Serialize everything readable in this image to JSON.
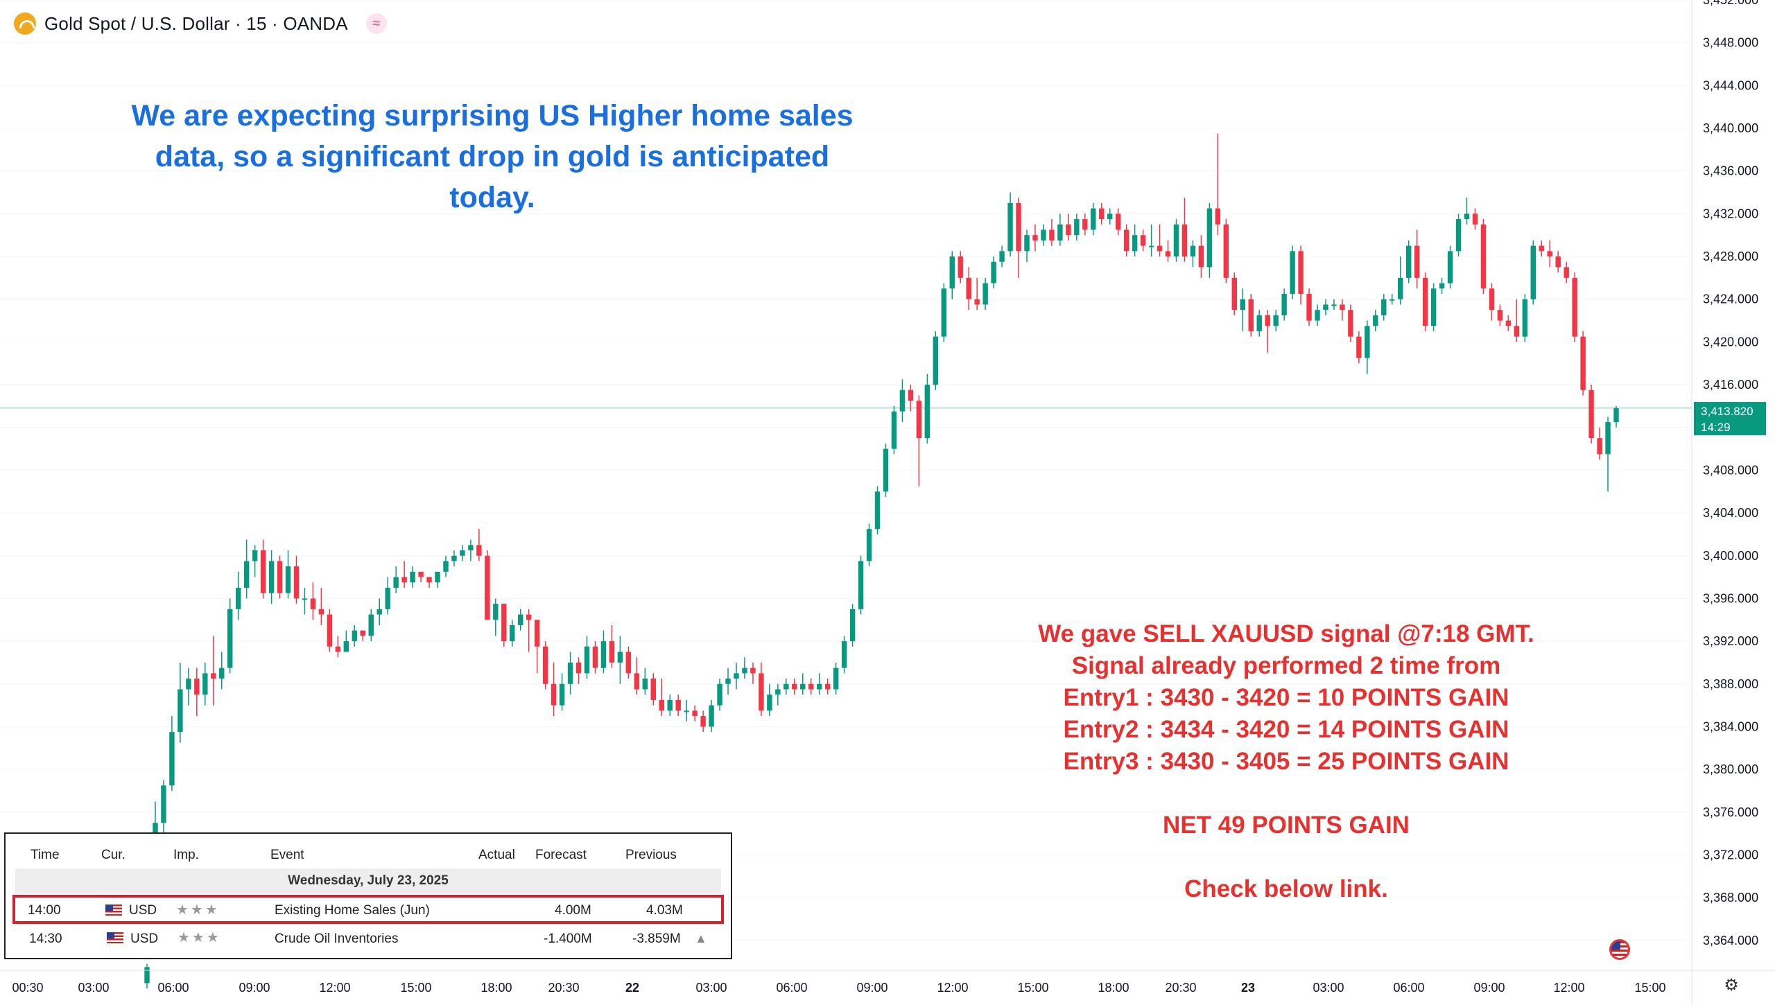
{
  "header": {
    "symbol_title": "Gold Spot / U.S. Dollar · 15 · OANDA",
    "wave_icon": "≈"
  },
  "annotation_blue": [
    "We are expecting surprising US Higher home sales",
    "data, so a significant drop in gold is anticipated",
    "today."
  ],
  "annotation_red": [
    "We gave SELL XAUUSD signal @7:18 GMT.",
    "Signal already performed 2 time from",
    "Entry1 : 3430 - 3420 = 10 POINTS GAIN",
    "Entry2 : 3434 - 3420 = 14 POINTS GAIN",
    "Entry3 : 3430 - 3405 = 25 POINTS GAIN",
    "",
    "NET 49 POINTS GAIN",
    "",
    "Check below link."
  ],
  "price_tag": {
    "price": "3,413.820",
    "countdown": "14:29"
  },
  "calendar": {
    "headers": {
      "time": "Time",
      "cur": "Cur.",
      "imp": "Imp.",
      "event": "Event",
      "actual": "Actual",
      "forecast": "Forecast",
      "previous": "Previous"
    },
    "date": "Wednesday, July 23, 2025",
    "rows": [
      {
        "time": "14:00",
        "cur": "USD",
        "stars": "★★★",
        "event": "Existing Home Sales (Jun)",
        "actual": "",
        "forecast": "4.00M",
        "previous": "4.03M",
        "highlighted": true
      },
      {
        "time": "14:30",
        "cur": "USD",
        "stars": "★★★",
        "event": "Crude Oil Inventories",
        "actual": "",
        "forecast": "-1.400M",
        "previous": "-3.859M",
        "highlighted": false
      }
    ]
  },
  "colors": {
    "up": "#089981",
    "down": "#f23645",
    "blue_text": "#1a6fe0",
    "red_text": "#e8302f"
  },
  "chart_data": {
    "type": "candlestick",
    "ylim": [
      3361.2,
      3452
    ],
    "y_ticks": [
      3452,
      3448,
      3444,
      3440,
      3436,
      3432,
      3428,
      3424,
      3420,
      3416,
      3412,
      3408,
      3404,
      3400,
      3396,
      3392,
      3388,
      3384,
      3380,
      3376,
      3372,
      3368,
      3364
    ],
    "y_tick_labels": [
      "3,452.000",
      "3,448.000",
      "3,444.000",
      "3,440.000",
      "3,436.000",
      "3,432.000",
      "3,428.000",
      "3,424.000",
      "3,420.000",
      "3,416.000",
      "",
      "3,408.000",
      "3,404.000",
      "3,400.000",
      "3,396.000",
      "3,392.000",
      "3,388.000",
      "3,384.000",
      "3,380.000",
      "3,376.000",
      "3,372.000",
      "3,368.000",
      "3,364.000"
    ],
    "x_tick_labels": [
      "00:30",
      "03:00",
      "06:00",
      "09:00",
      "12:00",
      "15:00",
      "18:00",
      "20:30",
      "22",
      "03:00",
      "06:00",
      "09:00",
      "12:00",
      "15:00",
      "18:00",
      "20:30",
      "23",
      "03:00",
      "06:00",
      "09:00",
      "12:00",
      "15:00"
    ],
    "current_price": 3413.82,
    "candles": [
      [
        3360.0,
        3361.5,
        3359.5,
        3361.8
      ],
      [
        3374.0,
        3375.0,
        3371.5,
        3377.0
      ],
      [
        3375.0,
        3378.5,
        3374.0,
        3379.0
      ],
      [
        3378.5,
        3383.5,
        3378.0,
        3385.0
      ],
      [
        3383.5,
        3387.5,
        3382.5,
        3390.0
      ],
      [
        3387.5,
        3388.5,
        3386.0,
        3389.5
      ],
      [
        3388.5,
        3387.0,
        3385.0,
        3389.5
      ],
      [
        3387.0,
        3389.0,
        3386.0,
        3390.0
      ],
      [
        3389.0,
        3388.5,
        3386.0,
        3392.5
      ],
      [
        3388.5,
        3389.5,
        3387.5,
        3391.0
      ],
      [
        3389.5,
        3395.0,
        3389.0,
        3396.0
      ],
      [
        3395.0,
        3397.0,
        3394.0,
        3398.5
      ],
      [
        3397.0,
        3399.5,
        3396.0,
        3401.5
      ],
      [
        3399.5,
        3400.5,
        3398.0,
        3401.0
      ],
      [
        3400.5,
        3396.5,
        3396.0,
        3401.5
      ],
      [
        3396.5,
        3399.5,
        3395.5,
        3400.5
      ],
      [
        3399.5,
        3396.5,
        3396.0,
        3400.0
      ],
      [
        3396.5,
        3399.0,
        3396.0,
        3400.5
      ],
      [
        3399.0,
        3396.0,
        3395.5,
        3400.0
      ],
      [
        3396.0,
        3396.0,
        3394.5,
        3397.0
      ],
      [
        3396.0,
        3395.0,
        3394.0,
        3397.5
      ],
      [
        3395.0,
        3394.5,
        3393.5,
        3397.0
      ],
      [
        3394.5,
        3391.5,
        3391.0,
        3395.0
      ],
      [
        3391.5,
        3391.0,
        3390.5,
        3392.5
      ],
      [
        3391.0,
        3392.0,
        3391.0,
        3393.0
      ],
      [
        3392.0,
        3393.0,
        3391.5,
        3393.5
      ],
      [
        3393.0,
        3392.5,
        3392.0,
        3393.0
      ],
      [
        3392.5,
        3394.5,
        3392.0,
        3395.0
      ],
      [
        3394.5,
        3395.0,
        3393.5,
        3396.0
      ],
      [
        3395.0,
        3397.0,
        3394.5,
        3398.0
      ],
      [
        3397.0,
        3398.0,
        3396.5,
        3399.0
      ],
      [
        3398.0,
        3397.5,
        3397.0,
        3399.5
      ],
      [
        3397.5,
        3398.5,
        3397.0,
        3399.0
      ],
      [
        3398.5,
        3398.0,
        3397.5,
        3398.5
      ],
      [
        3398.0,
        3397.5,
        3397.0,
        3398.0
      ],
      [
        3397.5,
        3398.5,
        3397.0,
        3398.5
      ],
      [
        3398.5,
        3399.5,
        3398.0,
        3400.0
      ],
      [
        3399.5,
        3400.0,
        3399.0,
        3400.5
      ],
      [
        3400.0,
        3400.5,
        3399.5,
        3401.0
      ],
      [
        3400.5,
        3401.0,
        3399.5,
        3401.5
      ],
      [
        3401.0,
        3400.0,
        3399.5,
        3402.5
      ],
      [
        3400.0,
        3394.0,
        3394.0,
        3400.5
      ],
      [
        3394.0,
        3395.5,
        3392.5,
        3396.0
      ],
      [
        3395.5,
        3392.0,
        3391.5,
        3395.5
      ],
      [
        3392.0,
        3393.5,
        3391.5,
        3394.0
      ],
      [
        3393.5,
        3394.5,
        3393.0,
        3395.0
      ],
      [
        3394.5,
        3394.0,
        3391.0,
        3395.0
      ],
      [
        3394.0,
        3391.5,
        3389.0,
        3393.5
      ],
      [
        3391.5,
        3388.0,
        3387.5,
        3392.0
      ],
      [
        3388.0,
        3386.0,
        3385.0,
        3390.0
      ],
      [
        3386.0,
        3388.0,
        3385.5,
        3389.0
      ],
      [
        3388.0,
        3390.0,
        3387.0,
        3391.0
      ],
      [
        3390.0,
        3389.0,
        3388.0,
        3390.5
      ],
      [
        3389.0,
        3391.5,
        3388.5,
        3392.5
      ],
      [
        3391.5,
        3389.5,
        3389.0,
        3392.0
      ],
      [
        3389.5,
        3392.0,
        3389.0,
        3393.0
      ],
      [
        3392.0,
        3390.0,
        3389.5,
        3393.5
      ],
      [
        3390.0,
        3391.0,
        3388.0,
        3392.5
      ],
      [
        3391.0,
        3389.0,
        3388.5,
        3391.5
      ],
      [
        3389.0,
        3387.5,
        3387.0,
        3390.5
      ],
      [
        3387.5,
        3388.5,
        3387.0,
        3389.5
      ],
      [
        3388.5,
        3386.5,
        3386.0,
        3389.0
      ],
      [
        3386.5,
        3385.5,
        3385.0,
        3388.5
      ],
      [
        3385.5,
        3386.5,
        3385.0,
        3387.0
      ],
      [
        3386.5,
        3385.5,
        3385.0,
        3387.0
      ],
      [
        3385.5,
        3385.5,
        3384.5,
        3386.5
      ],
      [
        3385.5,
        3385.0,
        3384.5,
        3386.0
      ],
      [
        3385.0,
        3384.0,
        3383.5,
        3385.5
      ],
      [
        3384.0,
        3386.0,
        3383.5,
        3386.5
      ],
      [
        3386.0,
        3388.0,
        3385.5,
        3388.5
      ],
      [
        3388.0,
        3388.5,
        3387.0,
        3389.5
      ],
      [
        3388.5,
        3389.0,
        3387.5,
        3390.0
      ],
      [
        3389.0,
        3389.5,
        3388.5,
        3390.5
      ],
      [
        3389.5,
        3389.0,
        3388.0,
        3390.0
      ],
      [
        3389.0,
        3385.5,
        3385.0,
        3390.0
      ],
      [
        3385.5,
        3387.0,
        3385.0,
        3388.0
      ],
      [
        3387.0,
        3387.5,
        3386.0,
        3388.0
      ],
      [
        3387.5,
        3388.0,
        3387.0,
        3388.5
      ],
      [
        3388.0,
        3387.5,
        3387.0,
        3388.5
      ],
      [
        3387.5,
        3388.0,
        3387.0,
        3389.0
      ],
      [
        3388.0,
        3387.5,
        3387.0,
        3388.5
      ],
      [
        3387.5,
        3388.0,
        3387.0,
        3389.0
      ],
      [
        3388.0,
        3387.5,
        3387.0,
        3388.5
      ],
      [
        3387.5,
        3389.5,
        3387.0,
        3390.0
      ],
      [
        3389.5,
        3392.0,
        3389.0,
        3392.5
      ],
      [
        3392.0,
        3395.0,
        3391.5,
        3395.5
      ],
      [
        3395.0,
        3399.5,
        3394.5,
        3400.0
      ],
      [
        3399.5,
        3402.5,
        3399.0,
        3403.0
      ],
      [
        3402.5,
        3406.0,
        3402.0,
        3406.5
      ],
      [
        3406.0,
        3410.0,
        3405.5,
        3410.5
      ],
      [
        3410.0,
        3413.5,
        3409.5,
        3414.0
      ],
      [
        3413.5,
        3415.5,
        3412.5,
        3416.5
      ],
      [
        3415.5,
        3414.5,
        3413.5,
        3416.0
      ],
      [
        3414.5,
        3411.0,
        3406.5,
        3415.0
      ],
      [
        3411.0,
        3416.0,
        3410.5,
        3417.0
      ],
      [
        3416.0,
        3420.5,
        3415.5,
        3421.0
      ],
      [
        3420.5,
        3425.0,
        3420.0,
        3425.5
      ],
      [
        3425.0,
        3428.0,
        3424.0,
        3428.5
      ],
      [
        3428.0,
        3426.0,
        3425.5,
        3428.5
      ],
      [
        3426.0,
        3424.0,
        3423.0,
        3427.0
      ],
      [
        3424.0,
        3423.5,
        3423.0,
        3426.0
      ],
      [
        3423.5,
        3425.5,
        3423.0,
        3426.0
      ],
      [
        3425.5,
        3427.5,
        3425.0,
        3428.0
      ],
      [
        3427.5,
        3428.5,
        3427.0,
        3429.0
      ],
      [
        3428.5,
        3433.0,
        3428.0,
        3434.0
      ],
      [
        3433.0,
        3428.5,
        3426.0,
        3433.5
      ],
      [
        3428.5,
        3430.0,
        3427.5,
        3430.5
      ],
      [
        3430.0,
        3429.5,
        3428.5,
        3431.0
      ],
      [
        3429.5,
        3430.5,
        3429.0,
        3431.0
      ],
      [
        3430.5,
        3429.5,
        3429.0,
        3431.5
      ],
      [
        3429.5,
        3431.0,
        3429.0,
        3432.0
      ],
      [
        3431.0,
        3430.0,
        3429.5,
        3432.0
      ],
      [
        3430.0,
        3431.5,
        3429.5,
        3432.0
      ],
      [
        3431.5,
        3430.5,
        3430.0,
        3432.0
      ],
      [
        3430.5,
        3432.5,
        3430.0,
        3433.0
      ],
      [
        3432.5,
        3431.5,
        3431.0,
        3433.0
      ],
      [
        3431.5,
        3432.0,
        3431.0,
        3432.5
      ],
      [
        3432.0,
        3430.5,
        3430.0,
        3432.5
      ],
      [
        3430.5,
        3428.5,
        3428.0,
        3431.0
      ],
      [
        3428.5,
        3430.0,
        3428.0,
        3431.0
      ],
      [
        3430.0,
        3429.0,
        3428.5,
        3430.5
      ],
      [
        3429.0,
        3429.0,
        3428.0,
        3431.0
      ],
      [
        3429.0,
        3428.5,
        3428.0,
        3431.0
      ],
      [
        3428.5,
        3428.0,
        3427.5,
        3429.5
      ],
      [
        3428.0,
        3431.0,
        3427.5,
        3431.5
      ],
      [
        3431.0,
        3428.0,
        3427.5,
        3433.5
      ],
      [
        3428.0,
        3429.0,
        3427.0,
        3429.5
      ],
      [
        3429.0,
        3427.0,
        3426.0,
        3430.0
      ],
      [
        3427.0,
        3432.5,
        3426.0,
        3433.0
      ],
      [
        3432.5,
        3431.0,
        3430.0,
        3439.5
      ],
      [
        3431.0,
        3426.0,
        3425.5,
        3431.5
      ],
      [
        3426.0,
        3423.0,
        3422.5,
        3426.5
      ],
      [
        3423.0,
        3424.0,
        3421.0,
        3425.0
      ],
      [
        3424.0,
        3421.0,
        3420.5,
        3424.5
      ],
      [
        3421.0,
        3422.5,
        3420.5,
        3423.0
      ],
      [
        3422.5,
        3421.5,
        3419.0,
        3423.0
      ],
      [
        3421.5,
        3422.5,
        3421.0,
        3423.0
      ],
      [
        3422.5,
        3424.5,
        3422.0,
        3425.0
      ],
      [
        3424.5,
        3428.5,
        3424.0,
        3429.0
      ],
      [
        3428.5,
        3424.5,
        3423.5,
        3429.0
      ],
      [
        3424.5,
        3422.0,
        3421.5,
        3425.0
      ],
      [
        3422.0,
        3423.0,
        3421.5,
        3423.5
      ],
      [
        3423.0,
        3423.5,
        3422.5,
        3424.0
      ],
      [
        3423.5,
        3423.5,
        3423.0,
        3424.0
      ],
      [
        3423.5,
        3423.0,
        3422.0,
        3424.0
      ],
      [
        3423.0,
        3420.5,
        3420.0,
        3423.5
      ],
      [
        3420.5,
        3418.5,
        3418.0,
        3421.0
      ],
      [
        3418.5,
        3421.5,
        3417.0,
        3422.0
      ],
      [
        3421.5,
        3422.5,
        3421.0,
        3423.0
      ],
      [
        3422.5,
        3424.0,
        3422.0,
        3424.5
      ],
      [
        3424.0,
        3424.0,
        3423.5,
        3424.5
      ],
      [
        3424.0,
        3426.0,
        3423.5,
        3428.0
      ],
      [
        3426.0,
        3429.0,
        3425.5,
        3429.5
      ],
      [
        3429.0,
        3426.0,
        3425.0,
        3430.5
      ],
      [
        3426.0,
        3421.5,
        3421.0,
        3426.5
      ],
      [
        3421.5,
        3425.0,
        3421.0,
        3425.5
      ],
      [
        3425.0,
        3425.5,
        3424.5,
        3426.0
      ],
      [
        3425.5,
        3428.5,
        3425.0,
        3429.0
      ],
      [
        3428.5,
        3431.5,
        3428.0,
        3432.0
      ],
      [
        3431.5,
        3432.0,
        3431.0,
        3433.5
      ],
      [
        3432.0,
        3431.0,
        3430.5,
        3432.5
      ],
      [
        3431.0,
        3425.0,
        3424.5,
        3431.5
      ],
      [
        3425.0,
        3423.0,
        3422.0,
        3425.5
      ],
      [
        3423.0,
        3422.0,
        3421.5,
        3423.5
      ],
      [
        3422.0,
        3421.5,
        3421.0,
        3422.5
      ],
      [
        3421.5,
        3420.5,
        3420.0,
        3424.0
      ],
      [
        3420.5,
        3424.0,
        3420.0,
        3424.5
      ],
      [
        3424.0,
        3429.0,
        3423.5,
        3429.5
      ],
      [
        3429.0,
        3428.5,
        3428.0,
        3429.5
      ],
      [
        3428.5,
        3428.0,
        3427.0,
        3429.5
      ],
      [
        3428.0,
        3427.0,
        3426.5,
        3428.5
      ],
      [
        3427.0,
        3426.0,
        3425.5,
        3427.5
      ],
      [
        3426.0,
        3420.5,
        3420.0,
        3426.5
      ],
      [
        3420.5,
        3415.5,
        3415.0,
        3421.0
      ],
      [
        3415.5,
        3411.0,
        3410.5,
        3416.0
      ],
      [
        3411.0,
        3409.5,
        3409.0,
        3412.0
      ],
      [
        3409.5,
        3412.5,
        3406.0,
        3413.0
      ],
      [
        3412.5,
        3413.8,
        3412.0,
        3414.0
      ]
    ]
  }
}
